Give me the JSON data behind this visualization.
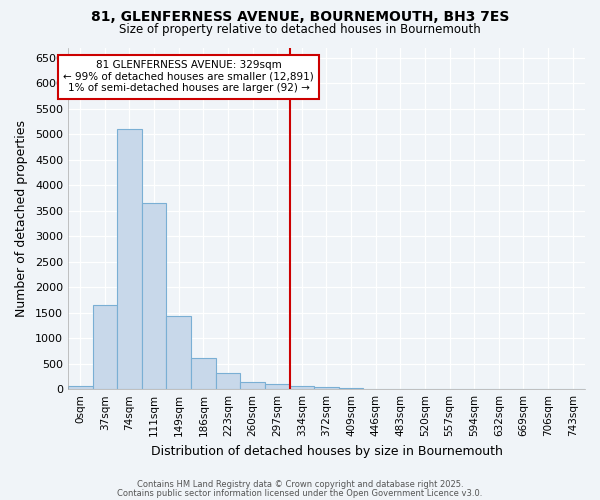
{
  "title_line1": "81, GLENFERNESS AVENUE, BOURNEMOUTH, BH3 7ES",
  "title_line2": "Size of property relative to detached houses in Bournemouth",
  "xlabel": "Distribution of detached houses by size in Bournemouth",
  "ylabel": "Number of detached properties",
  "bar_labels": [
    "0sqm",
    "37sqm",
    "74sqm",
    "111sqm",
    "149sqm",
    "186sqm",
    "223sqm",
    "260sqm",
    "297sqm",
    "334sqm",
    "372sqm",
    "409sqm",
    "446sqm",
    "483sqm",
    "520sqm",
    "557sqm",
    "594sqm",
    "632sqm",
    "669sqm",
    "706sqm",
    "743sqm"
  ],
  "bar_values": [
    70,
    1650,
    5100,
    3650,
    1430,
    620,
    310,
    145,
    100,
    60,
    45,
    20,
    10,
    0,
    0,
    0,
    0,
    0,
    0,
    0,
    0
  ],
  "bar_color": "#c8d8ea",
  "bar_edgecolor": "#7aafd4",
  "vline_index": 9,
  "vline_color": "#cc0000",
  "annotation_text_line1": "81 GLENFERNESS AVENUE: 329sqm",
  "annotation_text_line2": "← 99% of detached houses are smaller (12,891)",
  "annotation_text_line3": "1% of semi-detached houses are larger (92) →",
  "annotation_box_color": "#cc0000",
  "annotation_bg": "#ffffff",
  "ylim": [
    0,
    6700
  ],
  "yticks": [
    0,
    500,
    1000,
    1500,
    2000,
    2500,
    3000,
    3500,
    4000,
    4500,
    5000,
    5500,
    6000,
    6500
  ],
  "footer_line1": "Contains HM Land Registry data © Crown copyright and database right 2025.",
  "footer_line2": "Contains public sector information licensed under the Open Government Licence v3.0.",
  "bg_color": "#f0f4f8",
  "plot_bg_color": "#f0f4f8"
}
